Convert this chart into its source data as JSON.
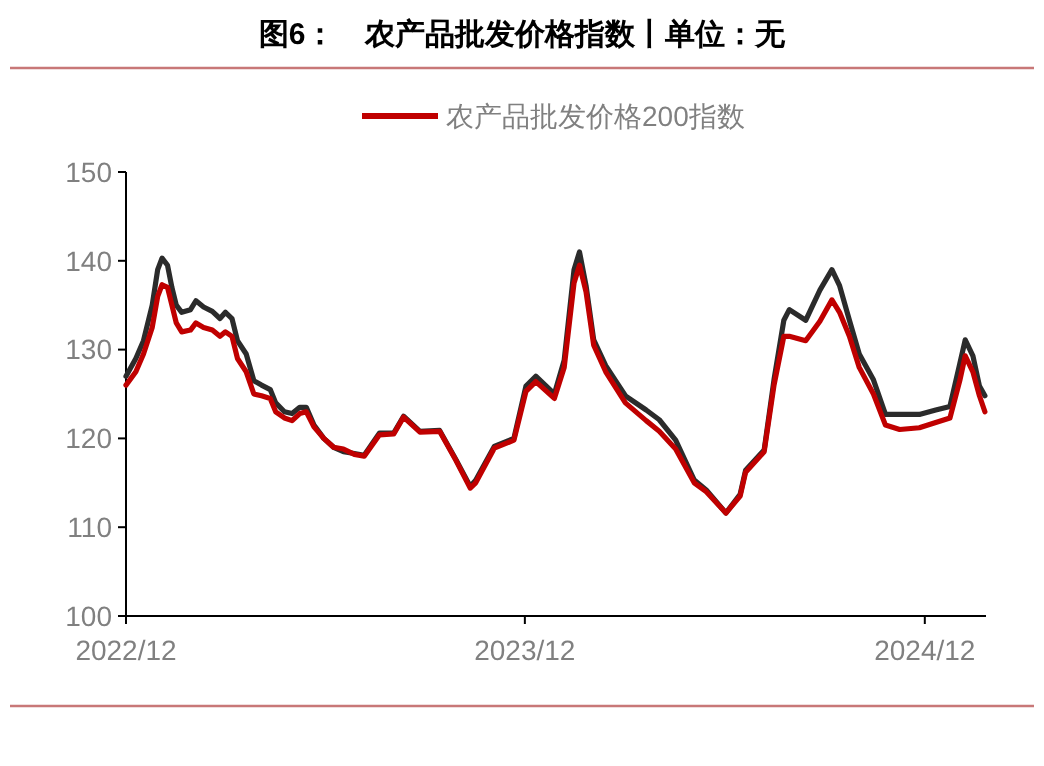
{
  "chart_data": {
    "type": "line",
    "title": "图6：　农产品批发价格指数丨单位：无",
    "x": [
      "2022-12-01",
      "2022-12-10",
      "2022-12-17",
      "2022-12-25",
      "2022-12-30",
      "2023-01-03",
      "2023-01-08",
      "2023-01-12",
      "2023-01-16",
      "2023-01-21",
      "2023-01-29",
      "2023-02-03",
      "2023-02-10",
      "2023-02-18",
      "2023-02-25",
      "2023-03-02",
      "2023-03-08",
      "2023-03-13",
      "2023-03-21",
      "2023-03-28",
      "2023-04-04",
      "2023-04-12",
      "2023-04-17",
      "2023-04-25",
      "2023-05-02",
      "2023-05-09",
      "2023-05-15",
      "2023-05-22",
      "2023-05-31",
      "2023-06-09",
      "2023-06-18",
      "2023-06-28",
      "2023-07-07",
      "2023-07-21",
      "2023-08-03",
      "2023-08-12",
      "2023-08-27",
      "2023-09-14",
      "2023-09-29",
      "2023-10-12",
      "2023-10-17",
      "2023-11-03",
      "2023-11-21",
      "2023-12-02",
      "2023-12-11",
      "2023-12-28",
      "2024-01-06",
      "2024-01-15",
      "2024-01-20",
      "2024-01-26",
      "2024-02-02",
      "2024-02-13",
      "2024-03-02",
      "2024-03-21",
      "2024-04-02",
      "2024-04-17",
      "2024-05-04",
      "2024-05-15",
      "2024-06-02",
      "2024-06-15",
      "2024-06-20",
      "2024-07-07",
      "2024-07-16",
      "2024-07-25",
      "2024-07-30",
      "2024-08-14",
      "2024-08-27",
      "2024-09-07",
      "2024-09-14",
      "2024-09-23",
      "2024-10-02",
      "2024-10-15",
      "2024-10-26",
      "2024-11-08",
      "2024-11-26",
      "2024-12-11",
      "2024-12-24",
      "2025-01-02",
      "2025-01-07",
      "2025-01-14",
      "2025-01-20",
      "2025-01-25"
    ],
    "series": [
      {
        "name": "农产品批发价格200指数",
        "color": "#c00000",
        "values": [
          126,
          127.5,
          129.5,
          132.5,
          136,
          137.3,
          137,
          135,
          133,
          132,
          132.2,
          133,
          132.5,
          132.2,
          131.5,
          132,
          131.5,
          129,
          127.5,
          125,
          124.8,
          124.5,
          123,
          122.3,
          122,
          122.8,
          123,
          121.3,
          120,
          119,
          118.8,
          118.2,
          118,
          120.4,
          120.5,
          122.4,
          120.7,
          120.8,
          117.5,
          114.4,
          115,
          118.9,
          119.8,
          125.3,
          126.4,
          124.5,
          128,
          137.5,
          139.5,
          136.5,
          130.5,
          127.5,
          124,
          122,
          120.8,
          118.8,
          115,
          114,
          111.6,
          113.5,
          116.2,
          118.5,
          126,
          131.5,
          131.5,
          131,
          133.2,
          135.6,
          134.2,
          131.5,
          128,
          125,
          121.5,
          121,
          121.2,
          121.8,
          122.3,
          126.5,
          129.3,
          127.5,
          124.8,
          123
        ]
      },
      {
        "color": "#2b2b2b",
        "values": [
          127,
          129,
          131,
          135,
          139,
          140.3,
          139.5,
          137,
          135,
          134.2,
          134.5,
          135.5,
          134.8,
          134.3,
          133.5,
          134.2,
          133.5,
          131,
          129.5,
          126.5,
          126,
          125.5,
          124,
          123,
          122.8,
          123.5,
          123.5,
          121.5,
          120,
          119,
          118.5,
          118.3,
          118.1,
          120.6,
          120.6,
          122.5,
          120.8,
          120.9,
          117.6,
          114.6,
          115.3,
          119.1,
          120,
          125.9,
          127,
          125,
          128.8,
          139,
          141,
          137.2,
          131.1,
          128.2,
          124.8,
          123.2,
          122.1,
          119.8,
          115.3,
          114.2,
          111.6,
          113.7,
          116.4,
          118.7,
          126.6,
          133.3,
          134.5,
          133.3,
          136.7,
          139,
          137.2,
          133.3,
          129.5,
          126.6,
          122.7,
          122.7,
          122.7,
          123.2,
          123.6,
          128.4,
          131.1,
          129.3,
          125.9,
          124.8
        ]
      }
    ],
    "xlim": [
      "2022-12-01",
      "2025-01-26"
    ],
    "xticks": [
      {
        "value": "2022-12-01",
        "label": "2022/12"
      },
      {
        "value": "2023-12-01",
        "label": "2023/12"
      },
      {
        "value": "2024-12-01",
        "label": "2024/12"
      }
    ],
    "ylim": [
      100,
      150
    ],
    "yticks": [
      100,
      110,
      120,
      130,
      140,
      150
    ],
    "legend": "top",
    "grid": false,
    "marker": "none",
    "line_style": "solid"
  }
}
